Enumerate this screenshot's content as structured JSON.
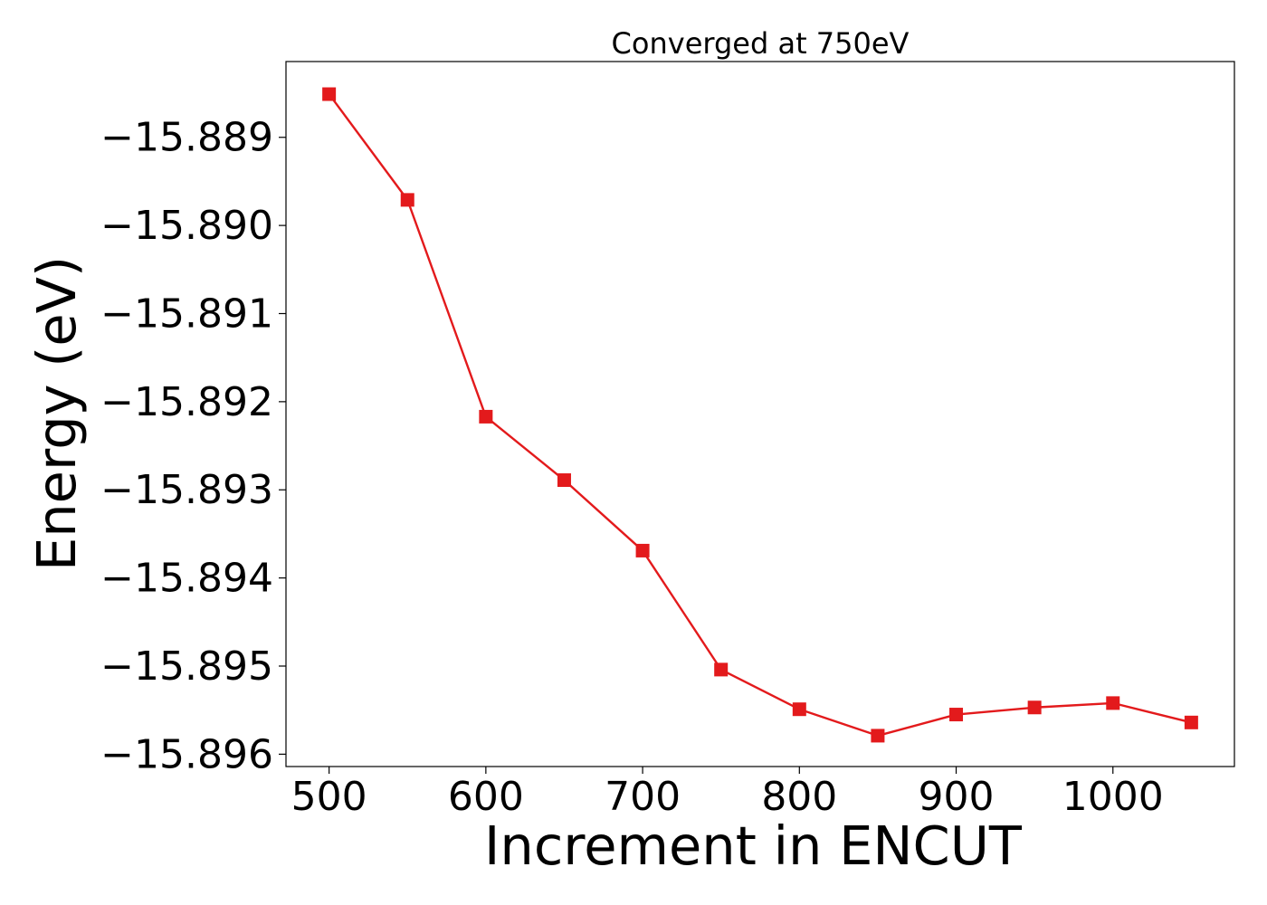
{
  "chart_data": {
    "type": "line",
    "title": "Converged at 750eV",
    "xlabel": "Increment in ENCUT",
    "ylabel": "Energy (eV)",
    "x": [
      500,
      550,
      600,
      650,
      700,
      750,
      800,
      850,
      900,
      950,
      1000,
      1050
    ],
    "series": [
      {
        "values": [
          -15.88851,
          -15.88971,
          -15.89217,
          -15.89289,
          -15.89369,
          -15.89504,
          -15.89549,
          -15.89579,
          -15.89555,
          -15.89547,
          -15.89542,
          -15.89564
        ],
        "color": "#e31a1c",
        "marker": "square"
      }
    ],
    "xticks": [
      500,
      600,
      700,
      800,
      900,
      1000
    ],
    "xtick_labels": [
      "500",
      "600",
      "700",
      "800",
      "900",
      "1000"
    ],
    "yticks": [
      -15.889,
      -15.89,
      -15.891,
      -15.892,
      -15.893,
      -15.894,
      -15.895,
      -15.896
    ],
    "ytick_labels": [
      "−15.889",
      "−15.890",
      "−15.891",
      "−15.892",
      "−15.893",
      "−15.894",
      "−15.895",
      "−15.896"
    ],
    "xlim": [
      472.5,
      1077.5
    ],
    "ylim": [
      -15.89614,
      -15.88814
    ],
    "grid": false,
    "legend": "none"
  }
}
